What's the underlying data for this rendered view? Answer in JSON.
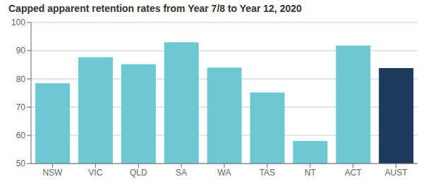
{
  "chart_data": {
    "type": "bar",
    "title": "Capped apparent retention rates from Year 7/8 to Year 12, 2020",
    "categories": [
      "NSW",
      "VIC",
      "QLD",
      "SA",
      "WA",
      "TAS",
      "NT",
      "ACT",
      "AUST"
    ],
    "values": [
      78.5,
      87.7,
      85.2,
      93.0,
      84.0,
      75.2,
      58.0,
      91.8,
      83.8
    ],
    "colors": [
      "#6DC8D4",
      "#6DC8D4",
      "#6DC8D4",
      "#6DC8D4",
      "#6DC8D4",
      "#6DC8D4",
      "#6DC8D4",
      "#6DC8D4",
      "#1B3A5C"
    ],
    "ylim": [
      50,
      100
    ],
    "yticks": [
      50,
      60,
      70,
      80,
      90,
      100
    ],
    "grid": true
  }
}
